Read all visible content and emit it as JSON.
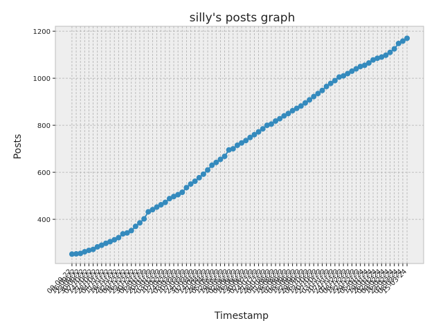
{
  "chart_data": {
    "type": "line",
    "title": "silly's posts graph",
    "xlabel": "Timestamp",
    "ylabel": "Posts",
    "categories": [
      "09-09-22",
      "16-09-22",
      "23-09-22",
      "30-09-22",
      "07-10-22",
      "14-10-22",
      "21-10-22",
      "28-10-22",
      "04-11-22",
      "11-11-22",
      "18-11-22",
      "25-11-22",
      "02-12-22",
      "09-12-22",
      "16-12-22",
      "23-12-22",
      "30-12-22",
      "06-01-23",
      "13-01-23",
      "20-01-23",
      "27-01-23",
      "03-02-23",
      "10-02-23",
      "17-02-23",
      "24-02-23",
      "03-03-23",
      "10-03-23",
      "17-03-23",
      "24-03-23",
      "31-03-23",
      "07-04-23",
      "14-04-23",
      "21-04-23",
      "28-04-23",
      "05-05-23",
      "12-05-23",
      "19-05-23",
      "26-05-23",
      "02-06-23",
      "09-06-23",
      "16-06-23",
      "23-06-23",
      "30-06-23",
      "07-07-23",
      "14-07-23",
      "21-07-23",
      "28-07-23",
      "04-08-23",
      "11-08-23",
      "18-08-23",
      "25-08-23",
      "01-09-23",
      "08-09-23",
      "15-09-23",
      "22-09-23",
      "29-09-23",
      "06-10-23",
      "13-10-23",
      "20-10-23",
      "27-10-23",
      "03-11-23",
      "10-11-23",
      "17-11-23",
      "24-11-23",
      "01-12-23",
      "08-12-23",
      "15-12-23",
      "22-12-23",
      "29-12-23",
      "05-01-24",
      "12-01-24",
      "19-01-24",
      "26-01-24",
      "02-02-24",
      "09-02-24",
      "16-02-24",
      "23-02-24",
      "01-03-24",
      "08-03-24",
      "15-03-24"
    ],
    "values": [
      252,
      253,
      255,
      262,
      268,
      272,
      283,
      290,
      298,
      305,
      313,
      322,
      338,
      342,
      352,
      370,
      385,
      402,
      432,
      441,
      452,
      462,
      472,
      488,
      497,
      505,
      515,
      535,
      550,
      562,
      577,
      592,
      610,
      630,
      642,
      655,
      668,
      695,
      700,
      715,
      725,
      735,
      748,
      760,
      772,
      785,
      800,
      805,
      818,
      828,
      840,
      850,
      862,
      872,
      882,
      895,
      908,
      922,
      935,
      948,
      965,
      978,
      990,
      1005,
      1010,
      1020,
      1030,
      1040,
      1050,
      1055,
      1065,
      1078,
      1085,
      1090,
      1098,
      1110,
      1125,
      1148,
      1158,
      1170
    ],
    "color": "#348ABD",
    "ylim": [
      212,
      1221
    ],
    "yticks": [
      400,
      600,
      800,
      1000,
      1200
    ],
    "grid": true
  }
}
